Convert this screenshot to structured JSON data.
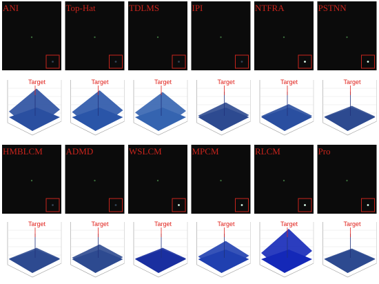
{
  "panels": [
    {
      "label": "ANI",
      "plot_label": "Target"
    },
    {
      "label": "Top-Hat",
      "plot_label": "Target"
    },
    {
      "label": "TDLMS",
      "plot_label": "Target"
    },
    {
      "label": "IPI",
      "plot_label": "Target"
    },
    {
      "label": "NTFRA",
      "plot_label": "Target"
    },
    {
      "label": "PSTNN",
      "plot_label": "Target"
    },
    {
      "label": "HMBLCM",
      "plot_label": "Target"
    },
    {
      "label": "ADMD",
      "plot_label": "Target"
    },
    {
      "label": "WSLCM",
      "plot_label": "Target"
    },
    {
      "label": "MPCM",
      "plot_label": "Target"
    },
    {
      "label": "RLCM",
      "plot_label": "Target"
    },
    {
      "label": "Pro",
      "plot_label": "Target"
    }
  ]
}
